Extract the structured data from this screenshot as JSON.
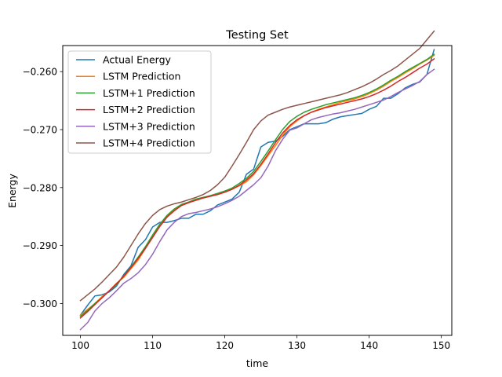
{
  "chart_data": {
    "type": "line",
    "title": "Testing Set",
    "xlabel": "time",
    "ylabel": "Energy",
    "xlim": [
      97.55,
      151.45
    ],
    "ylim": [
      -0.3055,
      -0.2555
    ],
    "xticks": [
      100,
      110,
      120,
      130,
      140,
      150
    ],
    "yticks": [
      -0.3,
      -0.29,
      -0.28,
      -0.27,
      -0.26
    ],
    "ytick_labels": [
      "−0.300",
      "−0.290",
      "−0.280",
      "−0.270",
      "−0.260"
    ],
    "grid": false,
    "legend_position": "top-left",
    "x": [
      100,
      101,
      102,
      103,
      104,
      105,
      106,
      107,
      108,
      109,
      110,
      111,
      112,
      113,
      114,
      115,
      116,
      117,
      118,
      119,
      120,
      121,
      122,
      123,
      124,
      125,
      126,
      127,
      128,
      129,
      130,
      131,
      132,
      133,
      134,
      135,
      136,
      137,
      138,
      139,
      140,
      141,
      142,
      143,
      144,
      145,
      146,
      147,
      148,
      149
    ],
    "series": [
      {
        "name": "Actual Energy",
        "color": "#1f77b4",
        "values": [
          -0.302,
          -0.3003,
          -0.2987,
          -0.2985,
          -0.298,
          -0.297,
          -0.295,
          -0.2935,
          -0.2903,
          -0.289,
          -0.2868,
          -0.286,
          -0.286,
          -0.2857,
          -0.2853,
          -0.2853,
          -0.2846,
          -0.2846,
          -0.284,
          -0.283,
          -0.2825,
          -0.282,
          -0.2808,
          -0.2777,
          -0.2768,
          -0.273,
          -0.2722,
          -0.272,
          -0.2712,
          -0.27,
          -0.2695,
          -0.269,
          -0.269,
          -0.269,
          -0.2688,
          -0.2682,
          -0.2678,
          -0.2676,
          -0.2674,
          -0.2672,
          -0.2665,
          -0.266,
          -0.2646,
          -0.2646,
          -0.2638,
          -0.2628,
          -0.2622,
          -0.2618,
          -0.2605,
          -0.2562
        ]
      },
      {
        "name": "LSTM Prediction",
        "color": "#ff7f0e",
        "values": [
          -0.302,
          -0.301,
          -0.3,
          -0.2988,
          -0.2978,
          -0.2965,
          -0.2955,
          -0.294,
          -0.2925,
          -0.2905,
          -0.2885,
          -0.2865,
          -0.285,
          -0.2838,
          -0.283,
          -0.2825,
          -0.282,
          -0.2817,
          -0.2815,
          -0.2812,
          -0.2808,
          -0.2803,
          -0.2797,
          -0.279,
          -0.2778,
          -0.2762,
          -0.2745,
          -0.2728,
          -0.271,
          -0.2695,
          -0.2685,
          -0.2676,
          -0.267,
          -0.2665,
          -0.2661,
          -0.2657,
          -0.2653,
          -0.265,
          -0.2647,
          -0.2643,
          -0.2638,
          -0.2632,
          -0.2625,
          -0.2617,
          -0.261,
          -0.2602,
          -0.2595,
          -0.2587,
          -0.258,
          -0.2572
        ]
      },
      {
        "name": "LSTM+1 Prediction",
        "color": "#2ca02c",
        "values": [
          -0.3022,
          -0.3012,
          -0.3,
          -0.299,
          -0.2978,
          -0.2967,
          -0.2953,
          -0.2937,
          -0.292,
          -0.2902,
          -0.2882,
          -0.2863,
          -0.2848,
          -0.2837,
          -0.2829,
          -0.2825,
          -0.282,
          -0.2817,
          -0.2814,
          -0.281,
          -0.2806,
          -0.2801,
          -0.2793,
          -0.2784,
          -0.2772,
          -0.2755,
          -0.2737,
          -0.2718,
          -0.27,
          -0.2686,
          -0.2677,
          -0.267,
          -0.2665,
          -0.2661,
          -0.2657,
          -0.2654,
          -0.2651,
          -0.2648,
          -0.2645,
          -0.2641,
          -0.2636,
          -0.263,
          -0.2623,
          -0.2615,
          -0.2608,
          -0.26,
          -0.2593,
          -0.2586,
          -0.2579,
          -0.257
        ]
      },
      {
        "name": "LSTM+2 Prediction",
        "color": "#d62728",
        "values": [
          -0.3025,
          -0.3014,
          -0.3002,
          -0.299,
          -0.2978,
          -0.2966,
          -0.2953,
          -0.2938,
          -0.2922,
          -0.2905,
          -0.2886,
          -0.2867,
          -0.2851,
          -0.284,
          -0.2831,
          -0.2826,
          -0.2822,
          -0.2818,
          -0.2815,
          -0.2812,
          -0.2808,
          -0.2803,
          -0.2796,
          -0.2787,
          -0.2776,
          -0.276,
          -0.2742,
          -0.2723,
          -0.2706,
          -0.2693,
          -0.2683,
          -0.2676,
          -0.267,
          -0.2666,
          -0.2662,
          -0.2659,
          -0.2656,
          -0.2653,
          -0.265,
          -0.2647,
          -0.2643,
          -0.2638,
          -0.2632,
          -0.2625,
          -0.2617,
          -0.261,
          -0.2602,
          -0.2594,
          -0.2587,
          -0.2578
        ]
      },
      {
        "name": "LSTM+3 Prediction",
        "color": "#9467bd",
        "values": [
          -0.3045,
          -0.3033,
          -0.3013,
          -0.3,
          -0.299,
          -0.2978,
          -0.2965,
          -0.2957,
          -0.2947,
          -0.2933,
          -0.2915,
          -0.2893,
          -0.2873,
          -0.286,
          -0.285,
          -0.2845,
          -0.2843,
          -0.284,
          -0.2837,
          -0.2833,
          -0.2828,
          -0.2822,
          -0.2815,
          -0.2805,
          -0.2795,
          -0.2783,
          -0.2763,
          -0.2737,
          -0.2717,
          -0.2701,
          -0.2697,
          -0.269,
          -0.2683,
          -0.2679,
          -0.2676,
          -0.2673,
          -0.2671,
          -0.2668,
          -0.2665,
          -0.2661,
          -0.2657,
          -0.2653,
          -0.2649,
          -0.2643,
          -0.2636,
          -0.263,
          -0.2624,
          -0.2617,
          -0.2605,
          -0.2596
        ]
      },
      {
        "name": "LSTM+4 Prediction",
        "color": "#8c564b",
        "values": [
          -0.2995,
          -0.2985,
          -0.2975,
          -0.2963,
          -0.295,
          -0.2937,
          -0.292,
          -0.29,
          -0.288,
          -0.2862,
          -0.2848,
          -0.2838,
          -0.2832,
          -0.2828,
          -0.2825,
          -0.2821,
          -0.2817,
          -0.2812,
          -0.2805,
          -0.2795,
          -0.2782,
          -0.2763,
          -0.2743,
          -0.2722,
          -0.27,
          -0.2685,
          -0.2675,
          -0.267,
          -0.2665,
          -0.2661,
          -0.2658,
          -0.2655,
          -0.2652,
          -0.2649,
          -0.2646,
          -0.2643,
          -0.264,
          -0.2636,
          -0.2631,
          -0.2626,
          -0.262,
          -0.2613,
          -0.2605,
          -0.2598,
          -0.259,
          -0.258,
          -0.257,
          -0.256,
          -0.2545,
          -0.253
        ]
      }
    ]
  }
}
